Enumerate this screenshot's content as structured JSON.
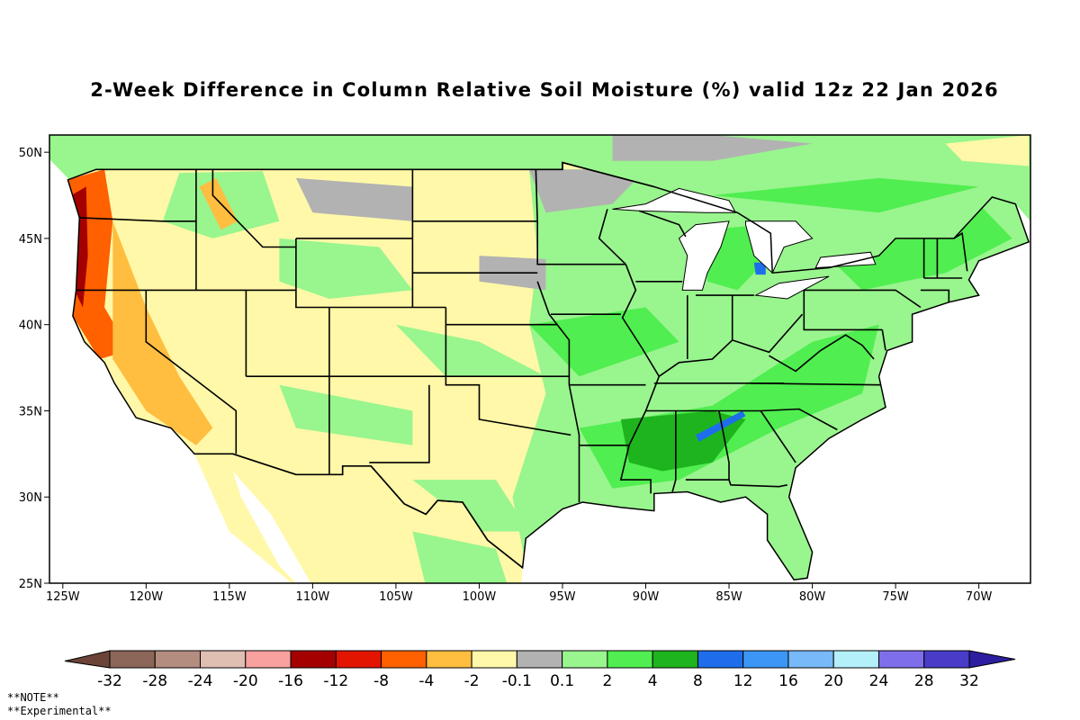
{
  "title": "2-Week Difference in Column Relative Soil Moisture (%) valid 12z 22 Jan 2026",
  "map": {
    "lon_ticks": [
      "125W",
      "120W",
      "115W",
      "110W",
      "105W",
      "100W",
      "95W",
      "90W",
      "85W",
      "80W",
      "75W",
      "70W"
    ],
    "lon_values": [
      -125,
      -120,
      -115,
      -110,
      -105,
      -100,
      -95,
      -90,
      -85,
      -80,
      -75,
      -70
    ],
    "lat_ticks": [
      "50N",
      "45N",
      "40N",
      "35N",
      "30N",
      "25N"
    ],
    "lat_values": [
      50,
      45,
      40,
      35,
      30,
      25
    ],
    "lon_range": [
      -125.8,
      -66.9
    ],
    "lat_range": [
      25,
      51
    ]
  },
  "colorbar": {
    "labels": [
      "-32",
      "-28",
      "-24",
      "-20",
      "-16",
      "-12",
      "-8",
      "-4",
      "-2",
      "-0.1",
      "0.1",
      "2",
      "4",
      "8",
      "12",
      "16",
      "20",
      "24",
      "28",
      "32"
    ],
    "colors": [
      "#8b6659",
      "#b38d80",
      "#e0bfb3",
      "#f9a19f",
      "#a50000",
      "#e21500",
      "#ff6000",
      "#ffbe3f",
      "#fff8a8",
      "#b2b2b2",
      "#99f58e",
      "#50ee50",
      "#1eb41e",
      "#1e6eeb",
      "#3c96f5",
      "#78b9fa",
      "#b4f0fa",
      "#7f6eeb",
      "#483cc8"
    ],
    "low_color": "#6b4437",
    "high_color": "#2c1ea0"
  },
  "notes": [
    "**NOTE**",
    "**Experimental**"
  ]
}
